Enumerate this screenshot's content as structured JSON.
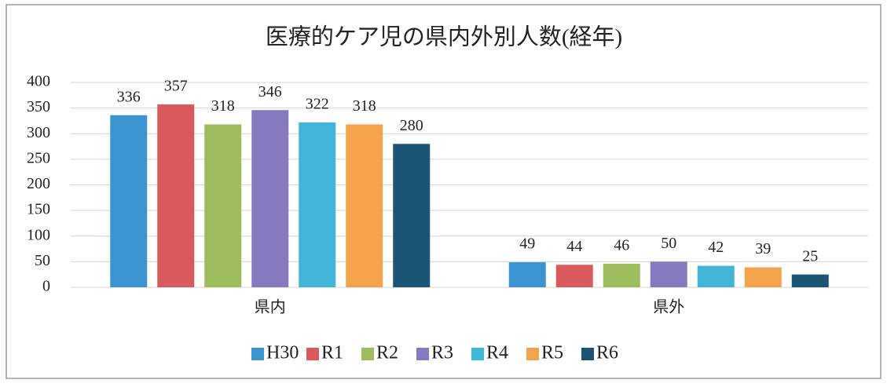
{
  "chart_data": {
    "type": "bar",
    "title": "医療的ケア児の県内外別人数(経年)",
    "categories": [
      "県内",
      "県外"
    ],
    "series": [
      {
        "name": "H30",
        "color": "#3c95d0",
        "values": [
          336,
          49
        ]
      },
      {
        "name": "R1",
        "color": "#d95a5c",
        "values": [
          357,
          44
        ]
      },
      {
        "name": "R2",
        "color": "#9dbc5b",
        "values": [
          318,
          46
        ]
      },
      {
        "name": "R3",
        "color": "#8679c0",
        "values": [
          346,
          50
        ]
      },
      {
        "name": "R4",
        "color": "#43b5d9",
        "values": [
          322,
          42
        ]
      },
      {
        "name": "R5",
        "color": "#f3a34c",
        "values": [
          318,
          39
        ]
      },
      {
        "name": "R6",
        "color": "#1b5474",
        "values": [
          280,
          25
        ]
      }
    ],
    "ylim": [
      0,
      400
    ],
    "yticks": [
      0,
      50,
      100,
      150,
      200,
      250,
      300,
      350,
      400
    ],
    "grid": true,
    "legend": "bottom"
  }
}
